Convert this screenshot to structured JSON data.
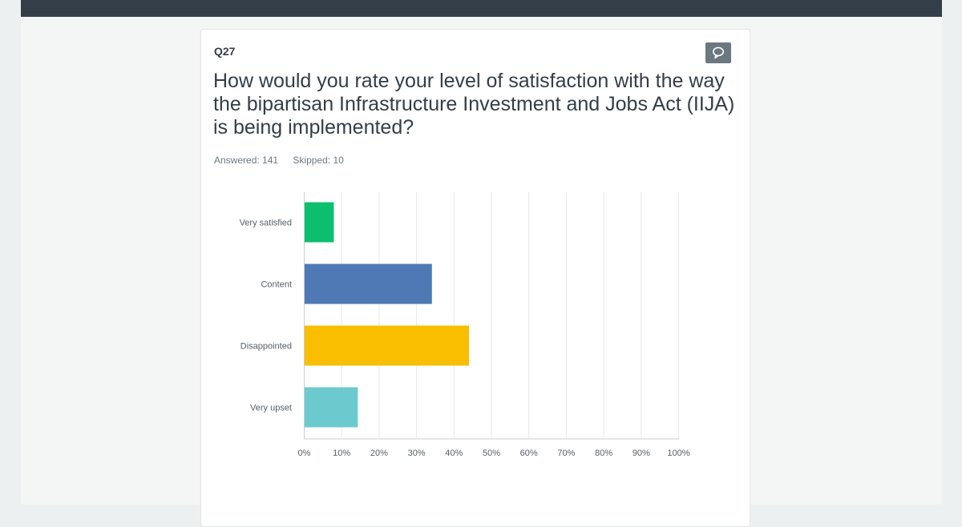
{
  "question": {
    "number": "Q27",
    "title": "How would you rate your level of satisfaction with the way the bipartisan Infrastructure Investment and Jobs Act (IIJA) is being implemented?",
    "answered": "Answered: 141",
    "skipped": "Skipped: 10",
    "comment_icon": "speech-bubble-icon"
  },
  "colors": {
    "topbar": "#333e48",
    "bars": [
      "#0cbf6e",
      "#4e79b5",
      "#f9be00",
      "#6ccacf"
    ]
  },
  "chart_data": {
    "type": "bar",
    "orientation": "horizontal",
    "categories": [
      "Very satisfied",
      "Content",
      "Disappointed",
      "Very upset"
    ],
    "values": [
      7.8,
      34.0,
      43.9,
      14.2
    ],
    "xlim": [
      0,
      100
    ],
    "xticks": [
      "0%",
      "10%",
      "20%",
      "30%",
      "40%",
      "50%",
      "60%",
      "70%",
      "80%",
      "90%",
      "100%"
    ],
    "grid": true
  }
}
